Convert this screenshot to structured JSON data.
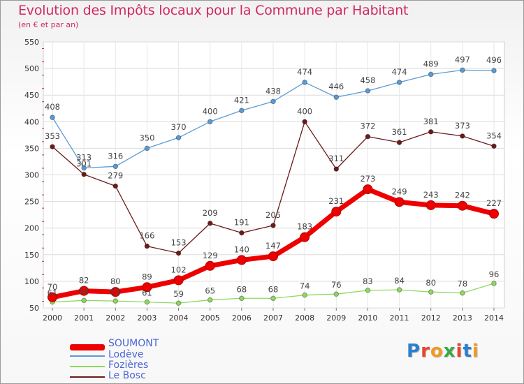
{
  "title": "Evolution des Impôts locaux pour la Commune par Habitant",
  "subtitle": "(en € et par an)",
  "logo_text": "Proxiti",
  "chart_data": {
    "type": "line",
    "title": "Evolution des Impôts locaux pour la Commune par Habitant",
    "subtitle": "(en € et par an)",
    "xlabel": "",
    "ylabel": "",
    "x": [
      "2000",
      "2001",
      "2002",
      "2003",
      "2004",
      "2005",
      "2006",
      "2007",
      "2008",
      "2009",
      "2010",
      "2011",
      "2012",
      "2013",
      "2014"
    ],
    "ylim": [
      50,
      550
    ],
    "yticks": [
      50,
      100,
      150,
      200,
      250,
      300,
      350,
      400,
      450,
      500,
      550
    ],
    "grid": true,
    "legend_position": "bottom-left",
    "series": [
      {
        "name": "Lodève",
        "color": "#5b9bd5",
        "values": [
          408,
          313,
          316,
          350,
          370,
          400,
          421,
          438,
          474,
          446,
          458,
          474,
          489,
          497,
          496
        ]
      },
      {
        "name": "Le Bosc",
        "color": "#6b1a1a",
        "values": [
          353,
          301,
          279,
          166,
          153,
          209,
          191,
          205,
          400,
          311,
          372,
          361,
          381,
          373,
          354
        ]
      },
      {
        "name": "Fozières",
        "color": "#8fd860",
        "values": [
          61,
          64,
          63,
          61,
          59,
          65,
          68,
          68,
          74,
          76,
          83,
          84,
          80,
          78,
          96
        ]
      },
      {
        "name": "SOUMONT",
        "color": "#ee0000",
        "values": [
          70,
          82,
          80,
          89,
          102,
          129,
          140,
          147,
          183,
          231,
          273,
          249,
          243,
          242,
          227
        ]
      }
    ]
  },
  "legend": [
    {
      "name": "SOUMONT",
      "color": "#ee0000"
    },
    {
      "name": "Lodève",
      "color": "#5b9bd5"
    },
    {
      "name": "Fozières",
      "color": "#8fd860"
    },
    {
      "name": "Le Bosc",
      "color": "#6b1a1a"
    }
  ]
}
